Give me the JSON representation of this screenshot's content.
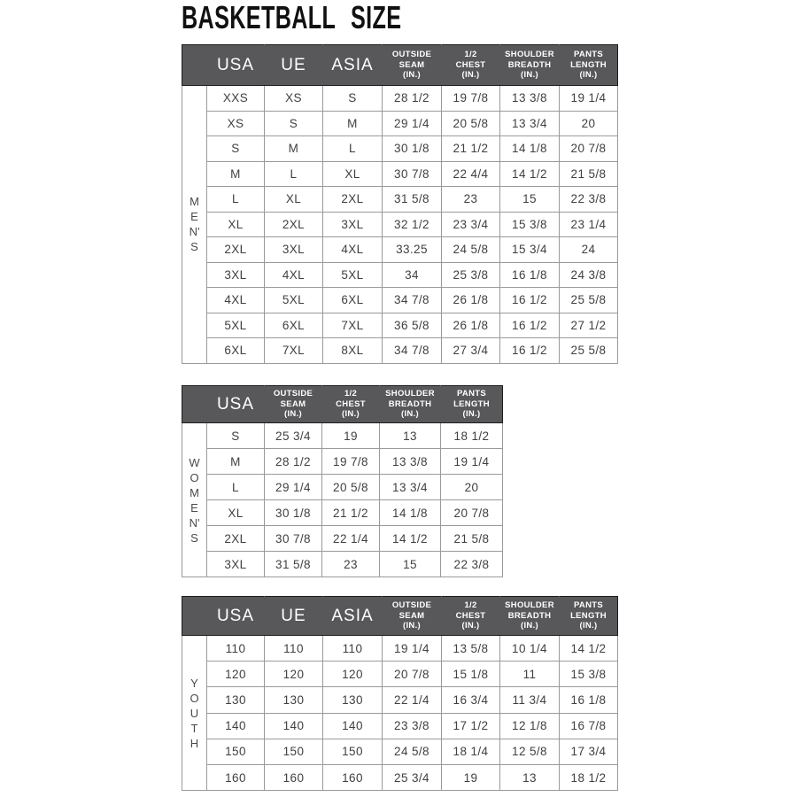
{
  "title": "BASKETBALL SIZE",
  "colors": {
    "header_bg": "#58585a",
    "header_text": "#ffffff",
    "body_text": "#404040",
    "grid_border": "#9a9a9a",
    "header_outline": "#1d1d1e",
    "title_text": "#111111"
  },
  "tables": [
    {
      "id": "mens",
      "section_label": "MEN'S",
      "side_label_vertical": "M\nE\nN'\nS",
      "columns": [
        {
          "label": "USA",
          "style": "big"
        },
        {
          "label": "UE",
          "style": "big"
        },
        {
          "label": "ASIA",
          "style": "big"
        },
        {
          "label": "OUTSIDE\nSEAM\n(IN.)",
          "style": "small"
        },
        {
          "label": "1/2\nCHEST\n(IN.)",
          "style": "small"
        },
        {
          "label": "SHOULDER\nBREADTH\n(IN.)",
          "style": "small"
        },
        {
          "label": "PANTS\nLENGTH\n(IN.)",
          "style": "small"
        }
      ],
      "rows": [
        [
          "XXS",
          "XS",
          "S",
          "28 1/2",
          "19 7/8",
          "13 3/8",
          "19 1/4"
        ],
        [
          "XS",
          "S",
          "M",
          "29 1/4",
          "20 5/8",
          "13 3/4",
          "20"
        ],
        [
          "S",
          "M",
          "L",
          "30 1/8",
          "21 1/2",
          "14 1/8",
          "20 7/8"
        ],
        [
          "M",
          "L",
          "XL",
          "30 7/8",
          "22 4/4",
          "14 1/2",
          "21 5/8"
        ],
        [
          "L",
          "XL",
          "2XL",
          "31 5/8",
          "23",
          "15",
          "22 3/8"
        ],
        [
          "XL",
          "2XL",
          "3XL",
          "32 1/2",
          "23 3/4",
          "15 3/8",
          "23 1/4"
        ],
        [
          "2XL",
          "3XL",
          "4XL",
          "33.25",
          "24 5/8",
          "15 3/4",
          "24"
        ],
        [
          "3XL",
          "4XL",
          "5XL",
          "34",
          "25 3/8",
          "16 1/8",
          "24 3/8"
        ],
        [
          "4XL",
          "5XL",
          "6XL",
          "34 7/8",
          "26 1/8",
          "16 1/2",
          "25 5/8"
        ],
        [
          "5XL",
          "6XL",
          "7XL",
          "36 5/8",
          "26 1/8",
          "16 1/2",
          "27 1/2"
        ],
        [
          "6XL",
          "7XL",
          "8XL",
          "34 7/8",
          "27 3/4",
          "16 1/2",
          "25 5/8"
        ]
      ]
    },
    {
      "id": "womens",
      "section_label": "WOMEN'S",
      "side_label_vertical": "W\nO\nM\nE\nN'\nS",
      "columns": [
        {
          "label": "USA",
          "style": "big"
        },
        {
          "label": "OUTSIDE\nSEAM\n(IN.)",
          "style": "small"
        },
        {
          "label": "1/2\nCHEST\n(IN.)",
          "style": "small"
        },
        {
          "label": "SHOULDER\nBREADTH\n(IN.)",
          "style": "small"
        },
        {
          "label": "PANTS\nLENGTH\n(IN.)",
          "style": "small"
        }
      ],
      "rows": [
        [
          "S",
          "25 3/4",
          "19",
          "13",
          "18 1/2"
        ],
        [
          "M",
          "28 1/2",
          "19 7/8",
          "13 3/8",
          "19 1/4"
        ],
        [
          "L",
          "29 1/4",
          "20 5/8",
          "13 3/4",
          "20"
        ],
        [
          "XL",
          "30 1/8",
          "21 1/2",
          "14 1/8",
          "20 7/8"
        ],
        [
          "2XL",
          "30 7/8",
          "22 1/4",
          "14 1/2",
          "21 5/8"
        ],
        [
          "3XL",
          "31 5/8",
          "23",
          "15",
          "22 3/8"
        ]
      ]
    },
    {
      "id": "youth",
      "section_label": "YOUTH",
      "side_label_vertical": "Y\nO\nU\nT\nH",
      "columns": [
        {
          "label": "USA",
          "style": "big"
        },
        {
          "label": "UE",
          "style": "big"
        },
        {
          "label": "ASIA",
          "style": "big"
        },
        {
          "label": "OUTSIDE\nSEAM\n(IN.)",
          "style": "small"
        },
        {
          "label": "1/2\nCHEST\n(IN.)",
          "style": "small"
        },
        {
          "label": "SHOULDER\nBREADTH\n(IN.)",
          "style": "small"
        },
        {
          "label": "PANTS\nLENGTH\n(IN.)",
          "style": "small"
        }
      ],
      "rows": [
        [
          "110",
          "110",
          "110",
          "19 1/4",
          "13 5/8",
          "10 1/4",
          "14 1/2"
        ],
        [
          "120",
          "120",
          "120",
          "20 7/8",
          "15 1/8",
          "11",
          "15 3/8"
        ],
        [
          "130",
          "130",
          "130",
          "22 1/4",
          "16 3/4",
          "11 3/4",
          "16 1/8"
        ],
        [
          "140",
          "140",
          "140",
          "23 3/8",
          "17 1/2",
          "12 1/8",
          "16 7/8"
        ],
        [
          "150",
          "150",
          "150",
          "24 5/8",
          "18 1/4",
          "12 5/8",
          "17 3/4"
        ],
        [
          "160",
          "160",
          "160",
          "25 3/4",
          "19",
          "13",
          "18 1/2"
        ]
      ]
    }
  ]
}
